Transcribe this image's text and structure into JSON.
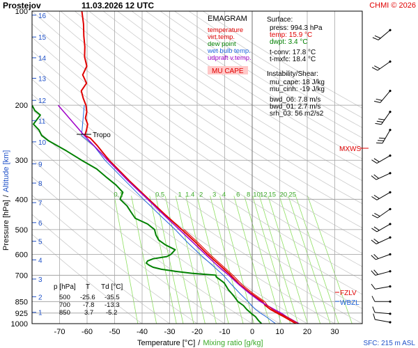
{
  "header": {
    "station": "Prostejov",
    "datetime": "11.03.2026 12 UTC",
    "copyright": "CHMI © 2026"
  },
  "axes": {
    "ylabel_pressure": "Pressure [hPa]",
    "ylabel_sep": "/",
    "ylabel_altitude": "Altitude [km]",
    "xlabel_temp": "Temperature [°C]",
    "xlabel_sep": "/",
    "xlabel_mix": "Mixing ratio [g/kg]",
    "sfc_label": "SFC: 215 m ASL"
  },
  "colors": {
    "temperature": "#e00000",
    "virt_temp": "#e00000",
    "dew_point": "#008000",
    "wet_bulb": "#1e64dc",
    "updraft": "#a000c8",
    "mixing": "#8ee060",
    "grid": "#b4b4b4",
    "mu_cape_fill": "#ffc8c8"
  },
  "legend": {
    "title": "EMAGRAM",
    "items": [
      {
        "label": "temperature",
        "color": "#e00000"
      },
      {
        "label": "virt.temp.",
        "color": "#e00000"
      },
      {
        "label": "dew point",
        "color": "#008000"
      },
      {
        "label": "wet bulb temp.",
        "color": "#1e64dc"
      },
      {
        "label": "udpraft v.temp.",
        "color": "#a000c8"
      }
    ],
    "mu_cape": "MU CAPE"
  },
  "info": {
    "surface_title": "Surface:",
    "press": "press: 994.3 hPa",
    "temp": "temp: 15.9 °C",
    "dwpt": "dwpt: 3.4 °C",
    "tconv": "t-conv: 17.8 °C",
    "tmxfc": "t-mxfc: 18.4 °C",
    "instab_title": "Instability/Shear:",
    "mu_cape": "mu_cape: 18 J/kg",
    "mu_cinh": "mu_cinh: -19 J/kg",
    "bwd06": "bwd_06: 7.8 m/s",
    "bwd01": "bwd_01: 2.7 m/s",
    "srh03": "srh_03: 56 m2/s2"
  },
  "table": {
    "headers": [
      "p [hPa]",
      "T",
      "Td [°C]"
    ],
    "rows": [
      [
        "500",
        "-25.6",
        "-35.5"
      ],
      [
        "700",
        "-7.8",
        "-13.3"
      ],
      [
        "850",
        "3.7",
        "-5.2"
      ]
    ]
  },
  "annotations": {
    "tropo": "Tropo",
    "mxws": "MXWS",
    "fzlv": "FZLV",
    "wbzl": "WBZL"
  },
  "chart_data": {
    "type": "line",
    "title": "EMAGRAM",
    "xlabel": "Temperature [°C]",
    "ylabel": "Pressure [hPa]",
    "xlim": [
      -80,
      40
    ],
    "ylim": [
      1000,
      100
    ],
    "yscale": "log",
    "pressure_ticks": [
      100,
      200,
      300,
      400,
      500,
      600,
      700,
      850,
      925,
      1000
    ],
    "temp_ticks": [
      -70,
      -60,
      -50,
      -40,
      -30,
      -20,
      -10,
      0,
      10,
      20,
      30
    ],
    "altitude_ticks": [
      {
        "km": 1,
        "p": 920
      },
      {
        "km": 2,
        "p": 820
      },
      {
        "km": 3,
        "p": 720
      },
      {
        "km": 4,
        "p": 625
      },
      {
        "km": 5,
        "p": 545
      },
      {
        "km": 6,
        "p": 475
      },
      {
        "km": 7,
        "p": 410
      },
      {
        "km": 8,
        "p": 355
      },
      {
        "km": 9,
        "p": 308
      },
      {
        "km": 10,
        "p": 262
      },
      {
        "km": 11,
        "p": 224
      },
      {
        "km": 12,
        "p": 193
      },
      {
        "km": 13,
        "p": 164
      },
      {
        "km": 14,
        "p": 141
      },
      {
        "km": 15,
        "p": 121
      },
      {
        "km": 16,
        "p": 103
      }
    ],
    "mixing_ratio_labels": [
      "0.1",
      "0.5",
      "1",
      "1.4",
      "2",
      "3",
      "4",
      "6",
      "8",
      "10",
      "12",
      "15",
      "20",
      "25"
    ],
    "mixing_ratio_p": 390,
    "series": [
      {
        "name": "temperature",
        "color": "#e00000",
        "points": [
          [
            1000,
            15.9
          ],
          [
            980,
            14.2
          ],
          [
            950,
            11.5
          ],
          [
            925,
            9.0
          ],
          [
            900,
            6.6
          ],
          [
            875,
            4.8
          ],
          [
            850,
            3.7
          ],
          [
            800,
            -0.5
          ],
          [
            750,
            -4.5
          ],
          [
            700,
            -7.8
          ],
          [
            650,
            -11.8
          ],
          [
            600,
            -16.2
          ],
          [
            550,
            -20.5
          ],
          [
            500,
            -25.6
          ],
          [
            450,
            -31.4
          ],
          [
            400,
            -37.6
          ],
          [
            350,
            -44.5
          ],
          [
            300,
            -52.0
          ],
          [
            270,
            -56.2
          ],
          [
            255,
            -58.8
          ],
          [
            250,
            -60.8
          ],
          [
            240,
            -60.2
          ],
          [
            230,
            -59.8
          ],
          [
            220,
            -60.6
          ],
          [
            210,
            -60.1
          ],
          [
            200,
            -60.4
          ],
          [
            190,
            -61.4
          ],
          [
            180,
            -62.1
          ],
          [
            170,
            -60.2
          ],
          [
            160,
            -61.6
          ],
          [
            150,
            -60.1
          ],
          [
            140,
            -60.9
          ],
          [
            130,
            -60.8
          ],
          [
            120,
            -61.2
          ],
          [
            110,
            -61.3
          ],
          [
            100,
            -61.9
          ]
        ]
      },
      {
        "name": "dew point",
        "color": "#008000",
        "points": [
          [
            1000,
            3.4
          ],
          [
            980,
            2.4
          ],
          [
            950,
            1.2
          ],
          [
            925,
            -0.5
          ],
          [
            900,
            -2.0
          ],
          [
            875,
            -3.2
          ],
          [
            850,
            -5.2
          ],
          [
            820,
            -6.5
          ],
          [
            800,
            -7.5
          ],
          [
            780,
            -8.6
          ],
          [
            760,
            -9.4
          ],
          [
            740,
            -10.2
          ],
          [
            720,
            -12.0
          ],
          [
            710,
            -13.0
          ],
          [
            700,
            -13.3
          ],
          [
            690,
            -22.0
          ],
          [
            680,
            -28.0
          ],
          [
            670,
            -33.0
          ],
          [
            660,
            -36.0
          ],
          [
            650,
            -37.5
          ],
          [
            640,
            -38.5
          ],
          [
            630,
            -38.0
          ],
          [
            620,
            -36.0
          ],
          [
            610,
            -31.0
          ],
          [
            600,
            -29.5
          ],
          [
            580,
            -28.0
          ],
          [
            560,
            -31.5
          ],
          [
            540,
            -34.0
          ],
          [
            520,
            -35.0
          ],
          [
            500,
            -35.5
          ],
          [
            480,
            -38.0
          ],
          [
            460,
            -42.5
          ],
          [
            440,
            -44.0
          ],
          [
            420,
            -45.5
          ],
          [
            400,
            -48.0
          ],
          [
            380,
            -47.0
          ],
          [
            360,
            -49.5
          ],
          [
            340,
            -53.0
          ],
          [
            320,
            -56.5
          ],
          [
            300,
            -62.0
          ],
          [
            280,
            -67.5
          ],
          [
            260,
            -74.0
          ],
          [
            250,
            -76.5
          ],
          [
            240,
            -77.5
          ],
          [
            230,
            -79.5
          ],
          [
            215,
            -77.0
          ],
          [
            208,
            -79.0
          ],
          [
            200,
            -80.0
          ]
        ]
      },
      {
        "name": "wet bulb temp.",
        "color": "#1e64dc",
        "points": [
          [
            1000,
            8.5
          ],
          [
            950,
            5.0
          ],
          [
            925,
            3.0
          ],
          [
            900,
            1.2
          ],
          [
            875,
            -0.2
          ],
          [
            850,
            -1.5
          ],
          [
            800,
            -4.5
          ],
          [
            750,
            -7.5
          ],
          [
            700,
            -10.5
          ],
          [
            650,
            -14.5
          ],
          [
            600,
            -19.0
          ],
          [
            550,
            -23.5
          ],
          [
            500,
            -28.0
          ],
          [
            450,
            -33.5
          ],
          [
            400,
            -39.5
          ],
          [
            350,
            -46.0
          ],
          [
            300,
            -53.5
          ],
          [
            270,
            -57.5
          ],
          [
            250,
            -62.0
          ],
          [
            200,
            -61.0
          ]
        ]
      },
      {
        "name": "udpraft v.temp.",
        "color": "#a000c8",
        "points": [
          [
            1000,
            17.0
          ],
          [
            950,
            12.5
          ],
          [
            925,
            10.5
          ],
          [
            900,
            8.0
          ],
          [
            875,
            5.5
          ],
          [
            850,
            3.0
          ],
          [
            800,
            -1.0
          ],
          [
            750,
            -4.8
          ],
          [
            700,
            -8.5
          ],
          [
            650,
            -12.8
          ],
          [
            600,
            -17.0
          ],
          [
            550,
            -21.5
          ],
          [
            500,
            -26.5
          ],
          [
            450,
            -32.0
          ],
          [
            400,
            -38.0
          ],
          [
            350,
            -45.0
          ],
          [
            300,
            -52.5
          ],
          [
            250,
            -61.0
          ],
          [
            200,
            -70.5
          ]
        ]
      }
    ]
  }
}
